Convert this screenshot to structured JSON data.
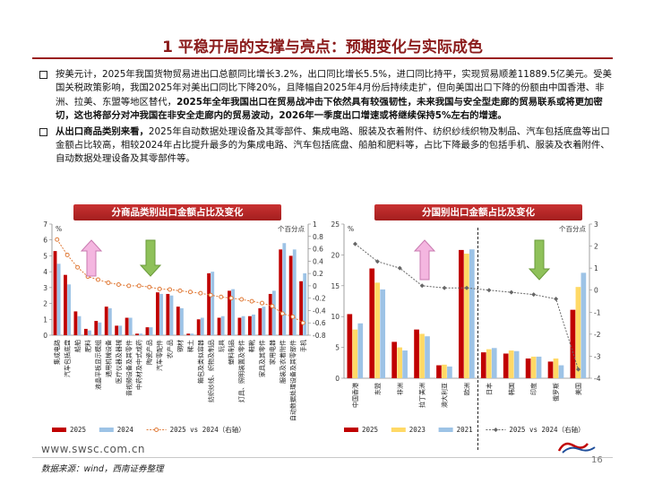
{
  "title": "1 平稳开局的支撑与亮点：预期变化与实际成色",
  "bullet1": {
    "text": "按美元计，2025年我国货物贸易进出口总额同比增长3.2%，出口同比增长5.5%，进口同比持平，实现贸易顺差11889.5亿美元。受美国关税政策影响，我国2025年对美出口同比下降20%，且降幅自2025年4月份后持续走扩，但向美国出口下降的份额由中国香港、非洲、拉美、东盟等地区替代，",
    "bold": "2025年全年我国出口在贸易战冲击下依然具有较强韧性，未来我国与安全型走廊的贸易联系或将更加密切，这也将部分对冲我国在非安全走廊内的贸易波动，2026年一季度出口增速或将继续保持5%左右的增速。"
  },
  "bullet2": {
    "bold": "从出口商品类别来看，",
    "text": "2025年自动数据处理设备及其零部件、集成电路、服装及衣着附件、纺织纱线织物及制品、汽车包括底盘等出口金额占比较高，相较2024年占比提升最多的为集成电路、汽车包括底盘、船舶和肥料等，占比下降最多的包括手机、服装及衣着附件、自动数据处理设备及其零部件等。"
  },
  "chart_data": [
    {
      "type": "bar",
      "title": "分商品类别出口金额占比及变化",
      "unit_label": "%",
      "right_unit_label": "个百分点",
      "categories": [
        "集成电路",
        "汽车包括底盘",
        "船舶",
        "肥料",
        "液晶平板显示模组",
        "通用机械设备",
        "医疗仪器及器械",
        "音视频设备及其零件",
        "中药材及中式成药",
        "陶瓷产品",
        "汽车零配件",
        "农产品",
        "钢材",
        "稀土",
        "箱包及类似容器",
        "纺织纱线、织物及制品",
        "玩具",
        "塑料制品",
        "灯具、照明装置及零件",
        "鞋靴",
        "家具及其零件",
        "家用电器",
        "服装及衣着附件",
        "自动数据处理设备及其零部件",
        "手机"
      ],
      "series": [
        {
          "name": "2025",
          "color": "#c00000",
          "values": [
            5.3,
            3.8,
            1.5,
            0.4,
            0.9,
            1.8,
            0.6,
            1.1,
            0.1,
            0.5,
            2.7,
            2.6,
            1.8,
            0.1,
            1.0,
            3.9,
            1.1,
            2.8,
            1.1,
            1.2,
            1.7,
            2.6,
            5.4,
            5.0,
            3.4
          ]
        },
        {
          "name": "2024",
          "color": "#9dc3e6",
          "values": [
            4.5,
            3.2,
            1.2,
            0.3,
            0.8,
            1.7,
            0.6,
            1.1,
            0.1,
            0.5,
            2.6,
            2.5,
            1.7,
            0.1,
            1.1,
            4.0,
            1.2,
            2.9,
            1.2,
            1.3,
            1.8,
            2.8,
            5.8,
            5.4,
            3.9
          ]
        }
      ],
      "line": {
        "name": "2025 vs 2024（右轴）",
        "color": "#e07b39",
        "values": [
          0.75,
          0.5,
          0.3,
          0.15,
          0.1,
          0.05,
          0.02,
          0.0,
          0.0,
          -0.02,
          -0.05,
          -0.06,
          -0.08,
          -0.1,
          -0.12,
          -0.15,
          -0.18,
          -0.2,
          -0.22,
          -0.25,
          -0.28,
          -0.33,
          -0.45,
          -0.5,
          -0.6
        ]
      },
      "ylim_left": [
        0,
        7
      ],
      "ylim_right": [
        -0.8,
        1
      ],
      "left_ticks": [
        "0",
        "1",
        "2",
        "3",
        "4",
        "5",
        "6",
        "7"
      ],
      "right_ticks": [
        "-0.8",
        "-0.6",
        "-0.4",
        "-0.2",
        "0",
        "0.2",
        "0.4",
        "0.6",
        "0.8",
        "1"
      ],
      "legend": [
        {
          "label": "2025",
          "color": "#c00000",
          "kind": "bar"
        },
        {
          "label": "2024",
          "color": "#9dc3e6",
          "kind": "bar"
        },
        {
          "label": "2025 vs 2024（右轴）",
          "color": "#e07b39",
          "kind": "line"
        }
      ]
    },
    {
      "type": "bar",
      "title": "分国别出口金额占比及变化",
      "unit_label": "%",
      "right_unit_label": "个百分点",
      "categories": [
        "中国香港",
        "东盟",
        "非洲",
        "拉丁美洲",
        "澳大利亚",
        "欧洲",
        "日本",
        "韩国",
        "印度",
        "俄罗斯",
        "美国"
      ],
      "series": [
        {
          "name": "2025",
          "color": "#c00000",
          "values": [
            10.4,
            17.8,
            5.9,
            7.9,
            2.1,
            20.8,
            4.2,
            4.0,
            3.2,
            2.7,
            11.1
          ]
        },
        {
          "name": "2023",
          "color": "#ffd966",
          "values": [
            7.9,
            15.5,
            5.0,
            7.2,
            2.2,
            20.2,
            4.7,
            4.5,
            3.5,
            3.2,
            14.8
          ]
        },
        {
          "name": "2021",
          "color": "#9dc3e6",
          "values": [
            8.9,
            14.4,
            4.5,
            6.8,
            1.9,
            20.9,
            4.9,
            4.4,
            3.5,
            2.1,
            17.1
          ]
        }
      ],
      "line": {
        "name": "2025 vs 2024（右轴）",
        "color": "#666666",
        "values": [
          2.1,
          1.3,
          1.0,
          0.2,
          0.1,
          0.1,
          0.0,
          -0.1,
          -0.2,
          -0.4,
          -3.6
        ]
      },
      "ylim_left": [
        0,
        25
      ],
      "ylim_right": [
        -4,
        3
      ],
      "left_ticks": [
        "0",
        "5",
        "10",
        "15",
        "20",
        "25"
      ],
      "right_ticks": [
        "-4",
        "-3",
        "-2",
        "-1",
        "0",
        "1",
        "2",
        "3"
      ],
      "legend": [
        {
          "label": "2025",
          "color": "#c00000",
          "kind": "bar"
        },
        {
          "label": "2023",
          "color": "#ffd966",
          "kind": "bar"
        },
        {
          "label": "2021",
          "color": "#9dc3e6",
          "kind": "bar"
        },
        {
          "label": "2025 vs 2024（右轴）",
          "color": "#666666",
          "kind": "line"
        }
      ]
    }
  ],
  "footer": {
    "url": "www.swsc.com.cn",
    "source": "数据来源：wind，西南证券整理",
    "page": "16"
  }
}
